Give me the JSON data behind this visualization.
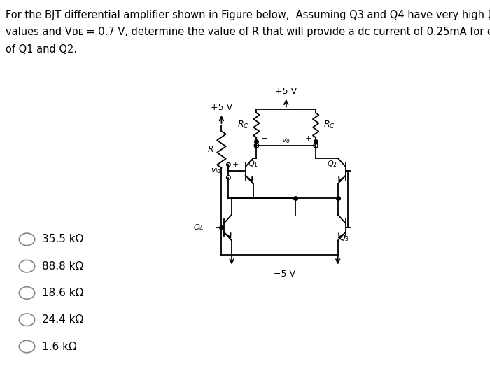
{
  "bg_color": "#ffffff",
  "text_color": "#000000",
  "font_size": 10.5,
  "choice_font_size": 11,
  "choices": [
    "35.5 kΩ",
    "88.8 kΩ",
    "18.6 kΩ",
    "24.4 kΩ",
    "1.6 kΩ"
  ]
}
